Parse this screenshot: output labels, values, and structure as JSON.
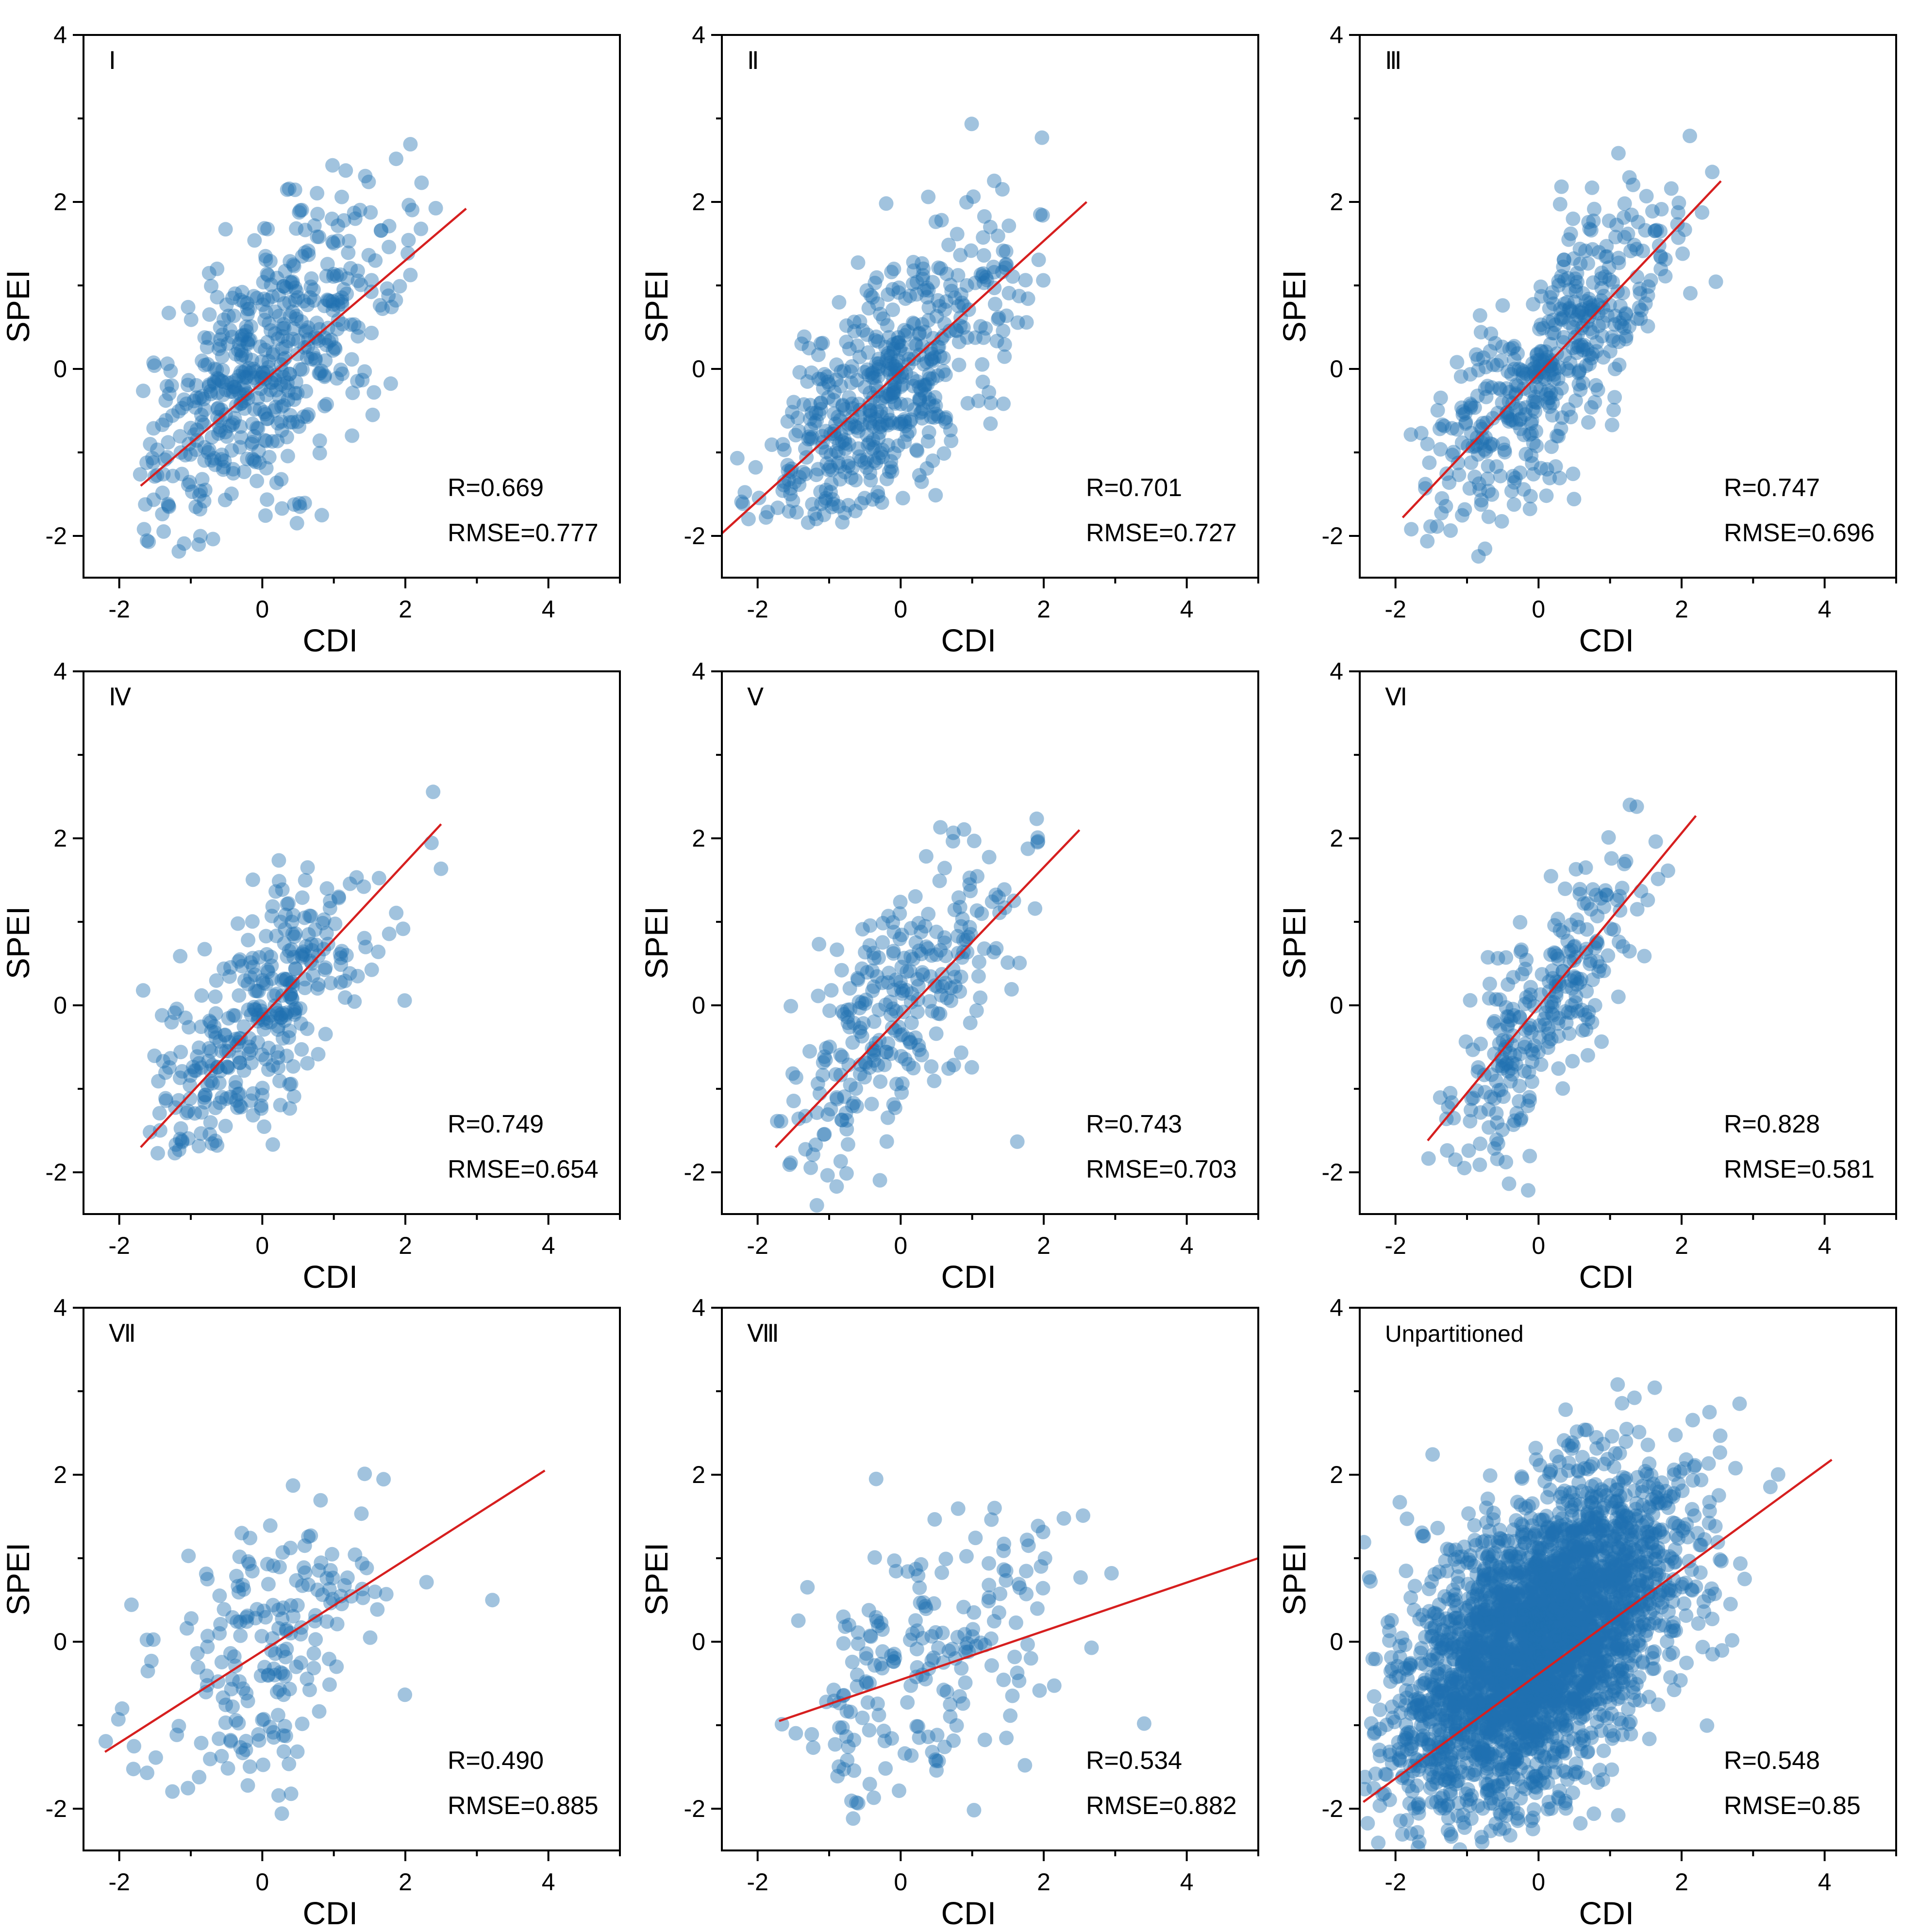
{
  "colors": {
    "points": "#1f6fb0",
    "fit_line": "#d61f1f",
    "axes": "#000000"
  },
  "chart_data": [
    {
      "type": "scatter",
      "panel": "I",
      "xlabel": "CDI",
      "ylabel": "SPEI",
      "xlim": [
        -2.5,
        5
      ],
      "ylim": [
        -2.5,
        4
      ],
      "xticks": [
        -2,
        0,
        2,
        4
      ],
      "yticks": [
        -2,
        0,
        2,
        4
      ],
      "stats": {
        "r": "R=0.669",
        "rmse": "RMSE=0.777"
      },
      "fit": {
        "x": [
          -1.7,
          2.85
        ],
        "y": [
          -1.4,
          1.92
        ]
      },
      "points": {
        "n": 520,
        "center": [
          0,
          0
        ],
        "sd": [
          0.95,
          1.0
        ],
        "r": 0.669,
        "xr": [
          -1.75,
          2.85
        ],
        "yr": [
          -2.25,
          3.0
        ]
      }
    },
    {
      "type": "scatter",
      "panel": "II",
      "xlabel": "CDI",
      "ylabel": "SPEI",
      "xlim": [
        -2.5,
        5
      ],
      "ylim": [
        -2.5,
        4
      ],
      "xticks": [
        -2,
        0,
        2,
        4
      ],
      "yticks": [
        -2,
        0,
        2,
        4
      ],
      "stats": {
        "r": "R=0.701",
        "rmse": "RMSE=0.727"
      },
      "fit": {
        "x": [
          -2.5,
          2.6
        ],
        "y": [
          -1.97,
          2.0
        ]
      },
      "points": {
        "n": 520,
        "center": [
          -0.2,
          -0.3
        ],
        "sd": [
          0.9,
          1.0
        ],
        "r": 0.701,
        "xr": [
          -2.5,
          2.6
        ],
        "yr": [
          -1.85,
          3.1
        ]
      }
    },
    {
      "type": "scatter",
      "panel": "III",
      "xlabel": "CDI",
      "ylabel": "SPEI",
      "xlim": [
        -2.5,
        5
      ],
      "ylim": [
        -2.5,
        4
      ],
      "xticks": [
        -2,
        0,
        2,
        4
      ],
      "yticks": [
        -2,
        0,
        2,
        4
      ],
      "stats": {
        "r": "R=0.747",
        "rmse": "RMSE=0.696"
      },
      "fit": {
        "x": [
          -1.9,
          2.55
        ],
        "y": [
          -1.78,
          2.25
        ]
      },
      "points": {
        "n": 460,
        "center": [
          0.1,
          0
        ],
        "sd": [
          0.9,
          1.0
        ],
        "r": 0.747,
        "xr": [
          -1.95,
          2.55
        ],
        "yr": [
          -2.4,
          2.85
        ]
      }
    },
    {
      "type": "scatter",
      "panel": "IV",
      "xlabel": "CDI",
      "ylabel": "SPEI",
      "xlim": [
        -2.5,
        5
      ],
      "ylim": [
        -2.5,
        4
      ],
      "xticks": [
        -2,
        0,
        2,
        4
      ],
      "yticks": [
        -2,
        0,
        2,
        4
      ],
      "stats": {
        "r": "R=0.749",
        "rmse": "RMSE=0.654"
      },
      "fit": {
        "x": [
          -1.7,
          2.5
        ],
        "y": [
          -1.7,
          2.17
        ]
      },
      "points": {
        "n": 330,
        "center": [
          -0.1,
          -0.2
        ],
        "sd": [
          0.85,
          1.0
        ],
        "r": 0.749,
        "xr": [
          -1.75,
          2.5
        ],
        "yr": [
          -1.85,
          3.0
        ]
      }
    },
    {
      "type": "scatter",
      "panel": "V",
      "xlabel": "CDI",
      "ylabel": "SPEI",
      "xlim": [
        -2.5,
        5
      ],
      "ylim": [
        -2.5,
        4
      ],
      "xticks": [
        -2,
        0,
        2,
        4
      ],
      "yticks": [
        -2,
        0,
        2,
        4
      ],
      "stats": {
        "r": "R=0.743",
        "rmse": "RMSE=0.703"
      },
      "fit": {
        "x": [
          -1.75,
          2.5
        ],
        "y": [
          -1.7,
          2.1
        ]
      },
      "points": {
        "n": 280,
        "center": [
          0,
          0
        ],
        "sd": [
          0.85,
          1.05
        ],
        "r": 0.743,
        "xr": [
          -1.75,
          2.5
        ],
        "yr": [
          -2.4,
          2.8
        ]
      }
    },
    {
      "type": "scatter",
      "panel": "VI",
      "xlabel": "CDI",
      "ylabel": "SPEI",
      "xlim": [
        -2.5,
        5
      ],
      "ylim": [
        -2.5,
        4
      ],
      "xticks": [
        -2,
        0,
        2,
        4
      ],
      "yticks": [
        -2,
        0,
        2,
        4
      ],
      "stats": {
        "r": "R=0.828",
        "rmse": "RMSE=0.581"
      },
      "fit": {
        "x": [
          -1.55,
          2.2
        ],
        "y": [
          -1.62,
          2.27
        ]
      },
      "points": {
        "n": 270,
        "center": [
          0,
          -0.1
        ],
        "sd": [
          0.75,
          1.0
        ],
        "r": 0.828,
        "xr": [
          -1.55,
          2.2
        ],
        "yr": [
          -2.45,
          3.1
        ]
      }
    },
    {
      "type": "scatter",
      "panel": "VII",
      "xlabel": "CDI",
      "ylabel": "SPEI",
      "xlim": [
        -2.5,
        5
      ],
      "ylim": [
        -2.5,
        4
      ],
      "xticks": [
        -2,
        0,
        2,
        4
      ],
      "yticks": [
        -2,
        0,
        2,
        4
      ],
      "stats": {
        "r": "R=0.490",
        "rmse": "RMSE=0.885"
      },
      "fit": {
        "x": [
          -2.2,
          3.95
        ],
        "y": [
          -1.32,
          2.05
        ]
      },
      "points": {
        "n": 200,
        "center": [
          0,
          -0.1
        ],
        "sd": [
          0.85,
          0.9
        ],
        "r": 0.49,
        "xr": [
          -2.2,
          3.95
        ],
        "yr": [
          -2.1,
          2.45
        ]
      }
    },
    {
      "type": "scatter",
      "panel": "VIII",
      "xlabel": "CDI",
      "ylabel": "SPEI",
      "xlim": [
        -2.5,
        5
      ],
      "ylim": [
        -2.5,
        4
      ],
      "xticks": [
        -2,
        0,
        2,
        4
      ],
      "yticks": [
        -2,
        0,
        2,
        4
      ],
      "stats": {
        "r": "R=0.534",
        "rmse": "RMSE=0.882"
      },
      "fit": {
        "x": [
          -1.7,
          5.0
        ],
        "y": [
          -0.95,
          1.0
        ]
      },
      "points": {
        "n": 200,
        "center": [
          0.3,
          -0.3
        ],
        "sd": [
          1.2,
          0.95
        ],
        "r": 0.534,
        "xr": [
          -1.7,
          4.6
        ],
        "yr": [
          -2.25,
          2.2
        ]
      }
    },
    {
      "type": "scatter",
      "panel": "Unpartitioned",
      "xlabel": "CDI",
      "ylabel": "SPEI",
      "xlim": [
        -2.5,
        5
      ],
      "ylim": [
        -2.5,
        4
      ],
      "xticks": [
        -2,
        0,
        2,
        4
      ],
      "yticks": [
        -2,
        0,
        2,
        4
      ],
      "stats": {
        "r": "R=0.548",
        "rmse": "RMSE=0.85"
      },
      "fit": {
        "x": [
          -2.45,
          4.1
        ],
        "y": [
          -1.92,
          2.18
        ]
      },
      "points": {
        "n": 3000,
        "center": [
          0,
          0
        ],
        "sd": [
          1.0,
          1.0
        ],
        "r": 0.548,
        "xr": [
          -2.45,
          4.1
        ],
        "yr": [
          -2.5,
          3.1
        ]
      }
    }
  ],
  "panels": [
    {
      "label": "Ⅰ"
    },
    {
      "label": "Ⅱ"
    },
    {
      "label": "Ⅲ"
    },
    {
      "label": "Ⅳ"
    },
    {
      "label": "Ⅴ"
    },
    {
      "label": "Ⅵ"
    },
    {
      "label": "Ⅶ"
    },
    {
      "label": "Ⅷ"
    },
    {
      "label": "Unpartitioned"
    }
  ]
}
